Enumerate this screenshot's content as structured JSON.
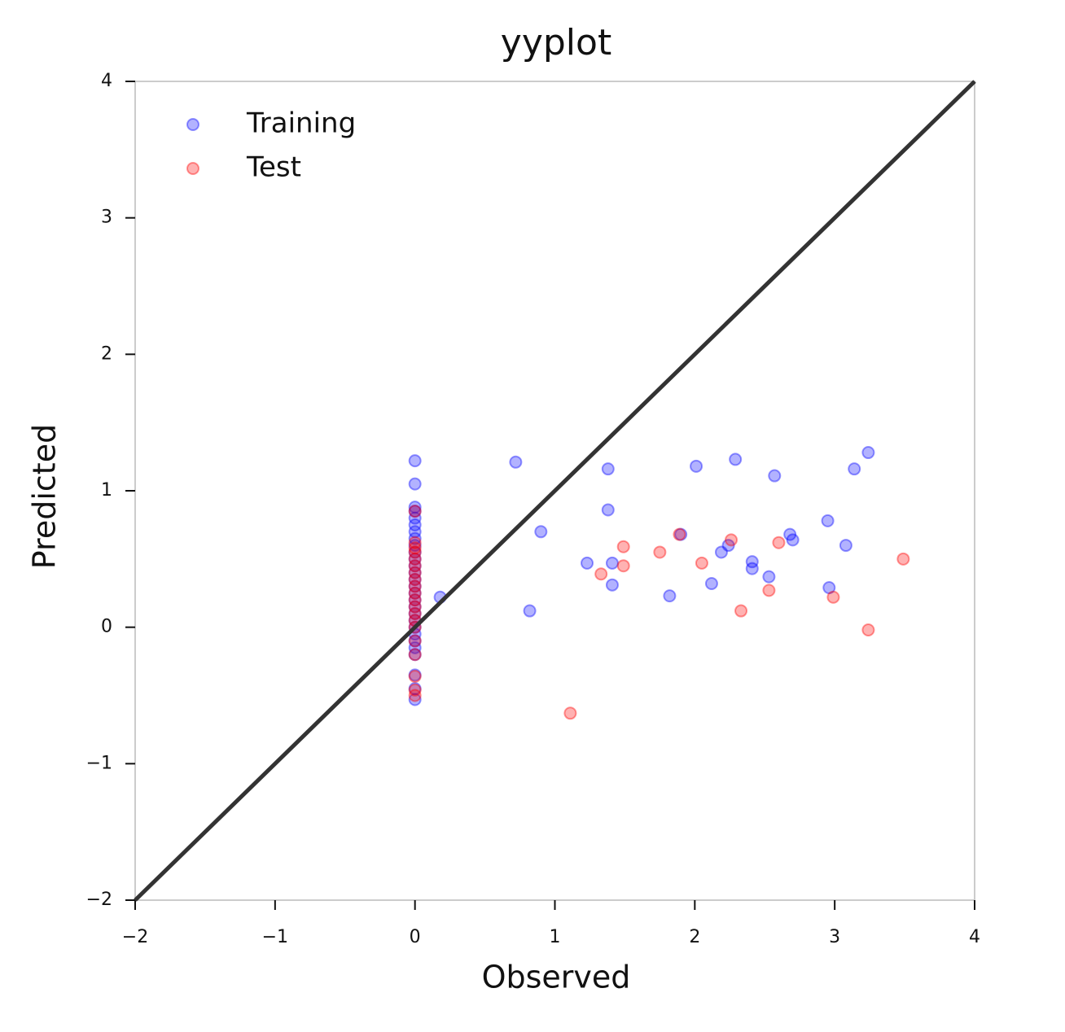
{
  "chart_data": {
    "type": "scatter",
    "title": "yyplot",
    "x_label": "Observed",
    "y_label": "Predicted",
    "xlim": [
      -2,
      4
    ],
    "ylim": [
      -2,
      4
    ],
    "xticks": [
      {
        "value": -2,
        "label": "−2"
      },
      {
        "value": -1,
        "label": "−1"
      },
      0,
      1,
      2,
      3,
      4
    ],
    "yticks": [
      {
        "value": -2,
        "label": "−2"
      },
      {
        "value": -1,
        "label": "−1"
      },
      0,
      1,
      2,
      3,
      4
    ],
    "legend": "upper left",
    "reference_line": {
      "x": [
        -2,
        4
      ],
      "values": [
        -2,
        4
      ],
      "color": "#333333"
    },
    "series": [
      {
        "name": "Training",
        "color": "blue",
        "x": [
          0,
          0,
          0,
          0,
          0,
          0,
          0,
          0,
          0,
          0,
          0,
          0,
          0,
          0,
          0,
          0,
          0,
          0,
          0,
          0,
          0,
          0,
          0,
          0,
          0,
          0,
          0,
          0,
          0.18,
          0.72,
          0.82,
          0.9,
          1.23,
          1.38,
          1.38,
          1.41,
          1.41,
          1.82,
          1.9,
          2.01,
          2.12,
          2.19,
          2.24,
          2.29,
          2.41,
          2.41,
          2.53,
          2.57,
          2.68,
          2.7,
          2.95,
          2.96,
          3.08,
          3.14,
          3.24
        ],
        "values": [
          1.22,
          1.05,
          0.88,
          0.85,
          0.8,
          0.75,
          0.7,
          0.65,
          0.6,
          0.55,
          0.5,
          0.45,
          0.4,
          0.35,
          0.3,
          0.25,
          0.2,
          0.15,
          0.1,
          0.05,
          0.0,
          -0.05,
          -0.1,
          -0.15,
          -0.2,
          -0.35,
          -0.45,
          -0.53,
          0.22,
          1.21,
          0.12,
          0.7,
          0.47,
          1.16,
          0.86,
          0.47,
          0.31,
          0.23,
          0.68,
          1.18,
          0.32,
          0.55,
          0.6,
          1.23,
          0.48,
          0.43,
          0.37,
          1.11,
          0.68,
          0.64,
          0.78,
          0.29,
          0.6,
          1.16,
          1.28
        ]
      },
      {
        "name": "Test",
        "color": "red",
        "x": [
          0,
          0,
          0,
          0,
          0,
          0,
          0,
          0,
          0,
          0,
          0,
          0,
          0,
          0,
          0,
          0,
          0,
          0,
          0,
          0,
          1.11,
          1.33,
          1.49,
          1.49,
          1.75,
          1.89,
          2.05,
          2.26,
          2.33,
          2.53,
          2.6,
          2.99,
          3.24,
          3.49
        ],
        "values": [
          0.85,
          0.62,
          0.58,
          0.55,
          0.5,
          0.45,
          0.4,
          0.35,
          0.3,
          0.25,
          0.2,
          0.15,
          0.1,
          0.05,
          0.0,
          -0.1,
          -0.2,
          -0.36,
          -0.46,
          -0.5,
          -0.63,
          0.39,
          0.59,
          0.45,
          0.55,
          0.68,
          0.47,
          0.64,
          0.12,
          0.27,
          0.62,
          0.22,
          -0.02,
          0.5
        ]
      }
    ]
  }
}
